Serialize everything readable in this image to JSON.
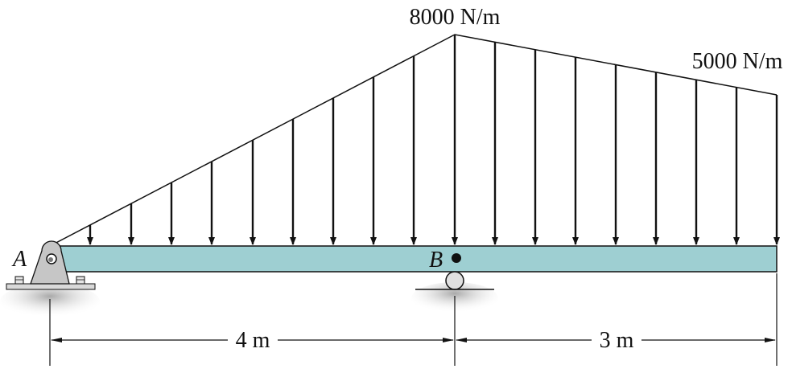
{
  "loads": {
    "peak_label": "8000 N/m",
    "end_label": "5000 N/m"
  },
  "supports": {
    "a_label": "A",
    "b_label": "B"
  },
  "dimensions": {
    "left_span_label": "4 m",
    "right_span_label": "3 m"
  },
  "colors": {
    "beam_fill": "#9ecfd2",
    "ground_shadow": "#b8b8b8",
    "support_fill": "#c9c9c9",
    "line": "#111111"
  }
}
